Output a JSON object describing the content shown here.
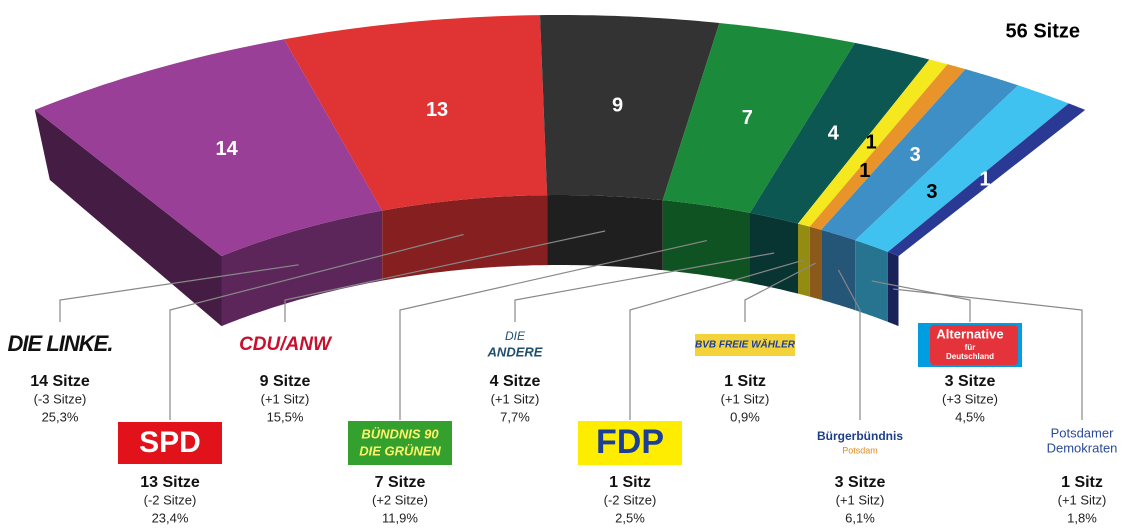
{
  "chart_data": {
    "type": "seat-arc",
    "title": "56 Sitze",
    "categories": [
      "DIE LINKE",
      "SPD",
      "CDU/ANW",
      "BÜNDNIS 90/DIE GRÜNEN",
      "DIE ANDERE",
      "FDP",
      "BVB FREIE WÄHLER",
      "Bürgerbündnis",
      "Alternative für Deutschland",
      "Potsdamer Demokraten"
    ],
    "values": [
      14,
      13,
      9,
      7,
      4,
      1,
      1,
      3,
      3,
      1
    ],
    "value_labels": [
      "14 Sitze",
      "13 Sitze",
      "9 Sitze",
      "7 Sitze",
      "4 Sitze",
      "1 Sitz",
      "1 Sitz",
      "3 Sitze",
      "3 Sitze",
      "1 Sitz"
    ],
    "changes": [
      "(-3 Sitze)",
      "(-2 Sitze)",
      "(+1 Sitz)",
      "(+2 Sitze)",
      "(+1 Sitz)",
      "(-2 Sitze)",
      "(+1 Sitz)",
      "(+1 Sitz)",
      "(+3 Sitze)",
      "(+1 Sitz)"
    ],
    "vote_shares": [
      "25,3%",
      "23,4%",
      "15,5%",
      "11,9%",
      "7,7%",
      "2,5%",
      "0,9%",
      "6,1%",
      "4,5%",
      "1,8%"
    ],
    "logos": [
      [
        "DIE LINKE."
      ],
      [
        "SPD"
      ],
      [
        "CDU/ANW"
      ],
      [
        "BÜNDNIS 90",
        "DIE GRÜNEN"
      ],
      [
        "DIE",
        "ANDERE"
      ],
      [
        "FDP"
      ],
      [
        "BVB FREIE WÄHLER"
      ],
      [
        "Bürgerbündnis",
        "Potsdam"
      ],
      [
        "Alternative",
        "für",
        "Deutschland"
      ],
      [
        "Potsdamer",
        "Demokraten"
      ]
    ],
    "colors": [
      "#9a3f98",
      "#e03333",
      "#333333",
      "#1b8b3b",
      "#0d5752",
      "#f6e81f",
      "#e8942a",
      "#3e8fc6",
      "#3fc2f0",
      "#2a3a94"
    ]
  }
}
